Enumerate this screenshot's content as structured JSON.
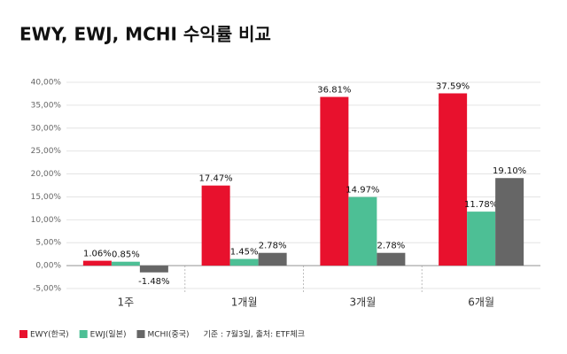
{
  "chart_data": {
    "type": "bar",
    "title": "EWY, EWJ, MCHI 수익률 비교",
    "categories": [
      "1주",
      "1개월",
      "3개월",
      "6개월"
    ],
    "series": [
      {
        "name": "EWY(한국)",
        "color": "#e8112d",
        "values": [
          1.06,
          17.47,
          36.81,
          37.59
        ],
        "value_labels": [
          "1.06%",
          "17.47%",
          "36.81%",
          "37.59%"
        ]
      },
      {
        "name": "EWJ(일본)",
        "color": "#4dbf95",
        "values": [
          0.85,
          1.45,
          14.97,
          11.78
        ],
        "value_labels": [
          "0.85%",
          "1.45%",
          "14.97%",
          "11.78%"
        ]
      },
      {
        "name": "MCHI(중국)",
        "color": "#666666",
        "values": [
          -1.48,
          2.78,
          2.78,
          19.1
        ],
        "value_labels": [
          "-1.48%",
          "2.78%",
          "2.78%",
          "19.10%"
        ]
      }
    ],
    "ylim": [
      -5,
      40
    ],
    "yticks": [
      {
        "value": -5,
        "label": "-5,00%"
      },
      {
        "value": 0,
        "label": "0,00%"
      },
      {
        "value": 5,
        "label": "5,00%"
      },
      {
        "value": 10,
        "label": "10,00%"
      },
      {
        "value": 15,
        "label": "15,00%"
      },
      {
        "value": 20,
        "label": "20,00%"
      },
      {
        "value": 25,
        "label": "25,00%"
      },
      {
        "value": 30,
        "label": "30,00%"
      },
      {
        "value": 35,
        "label": "35,00%"
      },
      {
        "value": 40,
        "label": "40,00%"
      }
    ],
    "grid": true,
    "note": "기준 : 7월3일, 출처: ETF체크"
  }
}
